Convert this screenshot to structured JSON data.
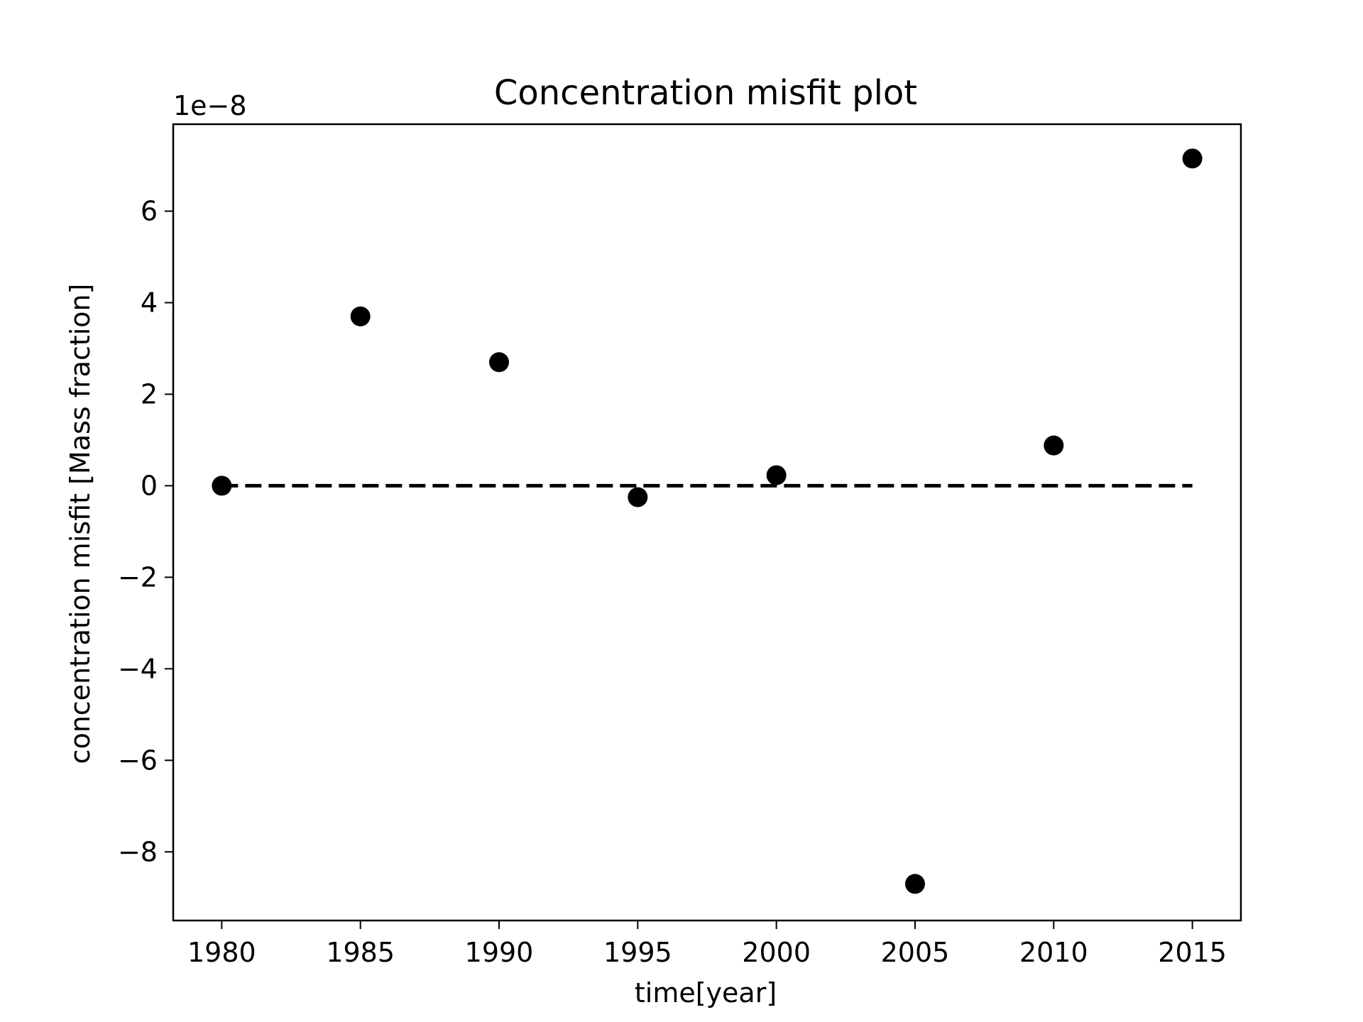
{
  "chart_data": {
    "type": "scatter",
    "title": "Concentration misfit plot",
    "xlabel": "time[year]",
    "ylabel": "concentration misfit [Mass fraction]",
    "y_offset_label": "1e−8",
    "xlim": [
      1978.25,
      2016.75
    ],
    "ylim": [
      -9.5,
      7.9
    ],
    "x_ticks": [
      1980,
      1985,
      1990,
      1995,
      2000,
      2005,
      2010,
      2015
    ],
    "x_tick_labels": [
      "1980",
      "1985",
      "1990",
      "1995",
      "2000",
      "2005",
      "2010",
      "2015"
    ],
    "y_ticks": [
      -8,
      -6,
      -4,
      -2,
      0,
      2,
      4,
      6
    ],
    "y_tick_labels": [
      "−8",
      "−6",
      "−4",
      "−2",
      "0",
      "2",
      "4",
      "6"
    ],
    "grid": false,
    "series": [
      {
        "style": "markers",
        "color": "#000000",
        "x": [
          1980,
          1985,
          1990,
          1995,
          2000,
          2005,
          2010,
          2015
        ],
        "y": [
          0.0,
          3.7,
          2.7,
          -0.25,
          0.23,
          -8.7,
          0.88,
          7.15
        ]
      },
      {
        "style": "dashed-line",
        "color": "#000000",
        "x": [
          1980,
          2015
        ],
        "y": [
          0,
          0
        ]
      }
    ]
  }
}
